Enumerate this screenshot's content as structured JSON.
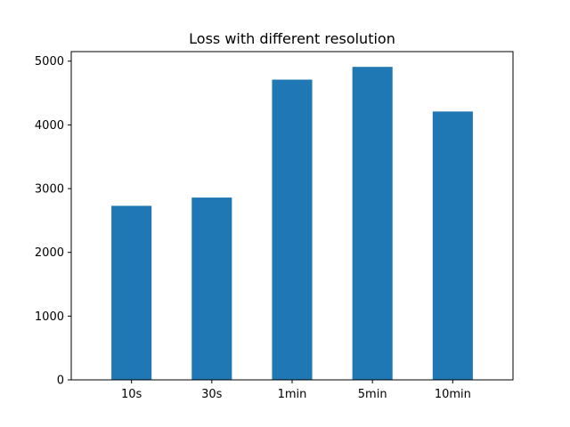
{
  "chart_data": {
    "type": "bar",
    "title": "Loss with different resolution",
    "xlabel": "",
    "ylabel": "",
    "categories": [
      "10s",
      "30s",
      "1min",
      "5min",
      "10min"
    ],
    "values": [
      2730,
      2860,
      4710,
      4910,
      4210
    ],
    "ylim": [
      0,
      5150
    ],
    "yticks": [
      0,
      1000,
      2000,
      3000,
      4000,
      5000
    ],
    "bar_color": "#1f77b4",
    "grid": false,
    "legend": "none"
  }
}
